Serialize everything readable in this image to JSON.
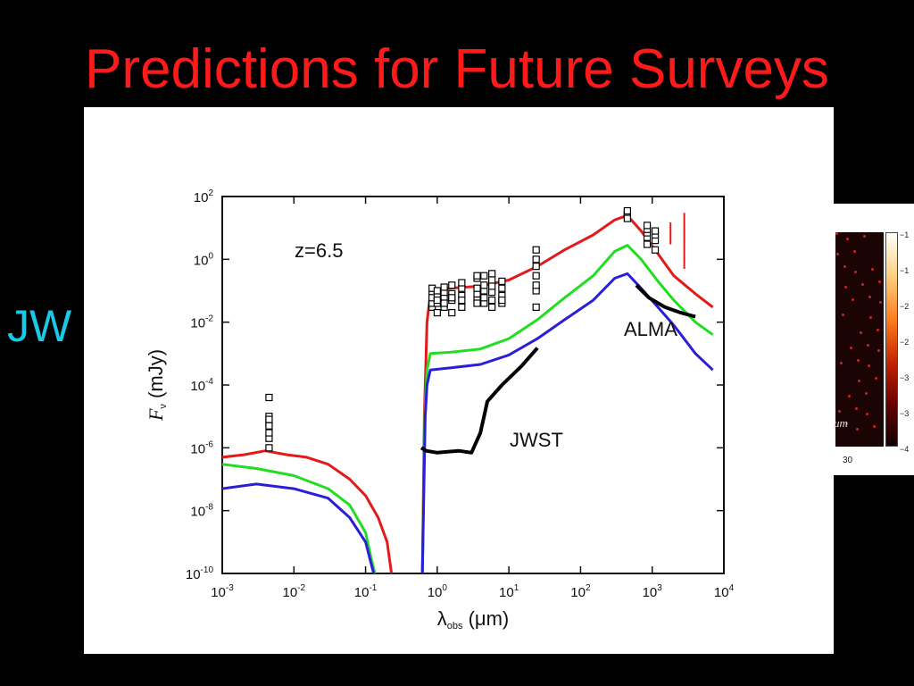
{
  "slide": {
    "title": "Predictions for Future Surveys",
    "side_text": "JW"
  },
  "right_panel": {
    "unit_text": "μm",
    "axis_tick": "30",
    "colorbar_ticks": [
      "−1",
      "−1",
      "−2",
      "−2",
      "−3",
      "−3",
      "−4"
    ]
  },
  "colors": {
    "title": "#ff1a1a",
    "side_text": "#19c9e6",
    "red_series": "#e31a1c",
    "green_series": "#22dd22",
    "blue_series": "#2a1fd6",
    "sensitivity": "#000000"
  },
  "chart_data": {
    "type": "line",
    "annotation": "z=6.5",
    "xlabel": "λobs (μm)",
    "ylabel": "Fν (mJy)",
    "xscale": "log",
    "yscale": "log",
    "xlim": [
      0.001,
      10000
    ],
    "ylim": [
      1e-10,
      100
    ],
    "x_ticks": [
      {
        "value": 0.001,
        "base": "10",
        "exp": "-3"
      },
      {
        "value": 0.01,
        "base": "10",
        "exp": "-2"
      },
      {
        "value": 0.1,
        "base": "10",
        "exp": "-1"
      },
      {
        "value": 1,
        "base": "10",
        "exp": "0"
      },
      {
        "value": 10,
        "base": "10",
        "exp": "1"
      },
      {
        "value": 100,
        "base": "10",
        "exp": "2"
      },
      {
        "value": 1000,
        "base": "10",
        "exp": "3"
      },
      {
        "value": 10000,
        "base": "10",
        "exp": "4"
      }
    ],
    "y_ticks": [
      {
        "value": 1e-10,
        "base": "10",
        "exp": "-10"
      },
      {
        "value": 1e-08,
        "base": "10",
        "exp": "-8"
      },
      {
        "value": 1e-06,
        "base": "10",
        "exp": "-6"
      },
      {
        "value": 0.0001,
        "base": "10",
        "exp": "-4"
      },
      {
        "value": 0.01,
        "base": "10",
        "exp": "-2"
      },
      {
        "value": 1,
        "base": "10",
        "exp": "0"
      },
      {
        "value": 100,
        "base": "10",
        "exp": "2"
      }
    ],
    "series": [
      {
        "color": "#e31a1c",
        "points": [
          [
            0.001,
            5e-07
          ],
          [
            0.002,
            6e-07
          ],
          [
            0.004,
            8e-07
          ],
          [
            0.008,
            6e-07
          ],
          [
            0.015,
            5e-07
          ],
          [
            0.03,
            3e-07
          ],
          [
            0.06,
            1e-07
          ],
          [
            0.1,
            3e-08
          ],
          [
            0.15,
            6e-09
          ],
          [
            0.2,
            1e-09
          ],
          [
            0.23,
            1e-10
          ]
        ],
        "points_b": [
          [
            0.62,
            1e-10
          ],
          [
            0.66,
            1e-05
          ],
          [
            0.72,
            0.01
          ],
          [
            0.8,
            0.08
          ],
          [
            1.5,
            0.12
          ],
          [
            4,
            0.14
          ],
          [
            10,
            0.22
          ],
          [
            25,
            0.6
          ],
          [
            60,
            2
          ],
          [
            150,
            6
          ],
          [
            300,
            18
          ],
          [
            450,
            25
          ],
          [
            700,
            8
          ],
          [
            1200,
            1.5
          ],
          [
            2000,
            0.3
          ],
          [
            4000,
            0.08
          ],
          [
            7000,
            0.03
          ]
        ]
      },
      {
        "color": "#22dd22",
        "points": [
          [
            0.001,
            3e-07
          ],
          [
            0.003,
            2.2e-07
          ],
          [
            0.01,
            1.3e-07
          ],
          [
            0.03,
            5e-08
          ],
          [
            0.06,
            1.5e-08
          ],
          [
            0.1,
            2e-09
          ],
          [
            0.12,
            3e-10
          ],
          [
            0.135,
            1e-10
          ]
        ],
        "points_b": [
          [
            0.62,
            1e-10
          ],
          [
            0.67,
            1e-05
          ],
          [
            0.72,
            0.0003
          ],
          [
            0.8,
            0.001
          ],
          [
            1.5,
            0.0011
          ],
          [
            4,
            0.0014
          ],
          [
            10,
            0.003
          ],
          [
            25,
            0.012
          ],
          [
            60,
            0.06
          ],
          [
            150,
            0.3
          ],
          [
            300,
            1.8
          ],
          [
            450,
            2.8
          ],
          [
            700,
            1
          ],
          [
            1200,
            0.2
          ],
          [
            2000,
            0.05
          ],
          [
            4000,
            0.01
          ],
          [
            7000,
            0.004
          ]
        ]
      },
      {
        "color": "#2a1fd6",
        "points": [
          [
            0.001,
            5e-08
          ],
          [
            0.003,
            7e-08
          ],
          [
            0.01,
            5e-08
          ],
          [
            0.03,
            2.5e-08
          ],
          [
            0.06,
            6e-09
          ],
          [
            0.1,
            1e-09
          ],
          [
            0.12,
            2e-10
          ],
          [
            0.13,
            1e-10
          ]
        ],
        "points_b": [
          [
            0.62,
            1e-10
          ],
          [
            0.68,
            1e-05
          ],
          [
            0.72,
            0.0001
          ],
          [
            0.8,
            0.0003
          ],
          [
            1.5,
            0.00035
          ],
          [
            4,
            0.00045
          ],
          [
            10,
            0.0009
          ],
          [
            25,
            0.003
          ],
          [
            60,
            0.012
          ],
          [
            150,
            0.05
          ],
          [
            300,
            0.25
          ],
          [
            450,
            0.35
          ],
          [
            700,
            0.12
          ],
          [
            1200,
            0.03
          ],
          [
            2000,
            0.008
          ],
          [
            4000,
            0.001
          ],
          [
            7000,
            0.0003
          ]
        ]
      }
    ],
    "sensitivity_curves": [
      {
        "name": "JWST",
        "points": [
          [
            0.6,
            1e-06
          ],
          [
            0.7,
            8e-07
          ],
          [
            1,
            7e-07
          ],
          [
            2,
            8e-07
          ],
          [
            3,
            7e-07
          ],
          [
            4,
            3e-06
          ],
          [
            4.5,
            1e-05
          ],
          [
            5,
            3e-05
          ],
          [
            8,
            0.0001
          ],
          [
            15,
            0.0004
          ],
          [
            25,
            0.0015
          ]
        ]
      },
      {
        "name": "ALMA",
        "points": [
          [
            600,
            0.15
          ],
          [
            900,
            0.06
          ],
          [
            1500,
            0.03
          ],
          [
            2500,
            0.02
          ],
          [
            4000,
            0.015
          ]
        ]
      }
    ],
    "observations": [
      {
        "x": 0.0045,
        "y": [
          1e-06,
          2e-06,
          3e-06,
          6e-06,
          1e-05,
          4e-05,
          8e-06,
          5e-06
        ]
      },
      {
        "x": 0.85,
        "y": [
          0.03,
          0.05,
          0.08,
          0.12,
          0.04,
          0.06
        ]
      },
      {
        "x": 1.0,
        "y": [
          0.02,
          0.04,
          0.07,
          0.1,
          0.05
        ]
      },
      {
        "x": 1.25,
        "y": [
          0.03,
          0.06,
          0.09,
          0.13,
          0.04
        ]
      },
      {
        "x": 1.6,
        "y": [
          0.02,
          0.05,
          0.08,
          0.15,
          0.06
        ]
      },
      {
        "x": 2.2,
        "y": [
          0.03,
          0.07,
          0.12,
          0.18,
          0.05
        ]
      },
      {
        "x": 3.6,
        "y": [
          0.05,
          0.08,
          0.12,
          0.25,
          0.3,
          0.04
        ]
      },
      {
        "x": 4.5,
        "y": [
          0.04,
          0.1,
          0.15,
          0.3,
          0.06
        ]
      },
      {
        "x": 5.8,
        "y": [
          0.05,
          0.09,
          0.14,
          0.22,
          0.35,
          0.03
        ]
      },
      {
        "x": 8.0,
        "y": [
          0.04,
          0.07,
          0.12,
          0.2,
          0.05
        ]
      },
      {
        "x": 24,
        "y": [
          0.03,
          0.1,
          0.3,
          0.6,
          1,
          2,
          0.15
        ]
      },
      {
        "x": 450,
        "y": [
          25,
          30,
          35,
          20
        ]
      },
      {
        "x": 850,
        "y": [
          3,
          5,
          7,
          9,
          12
        ]
      },
      {
        "x": 1100,
        "y": [
          2,
          4,
          6,
          8
        ]
      }
    ],
    "spikes": [
      {
        "x": 1800,
        "y_low": 3,
        "y_high": 15
      },
      {
        "x": 2800,
        "y_low": 0.5,
        "y_high": 30
      }
    ]
  }
}
